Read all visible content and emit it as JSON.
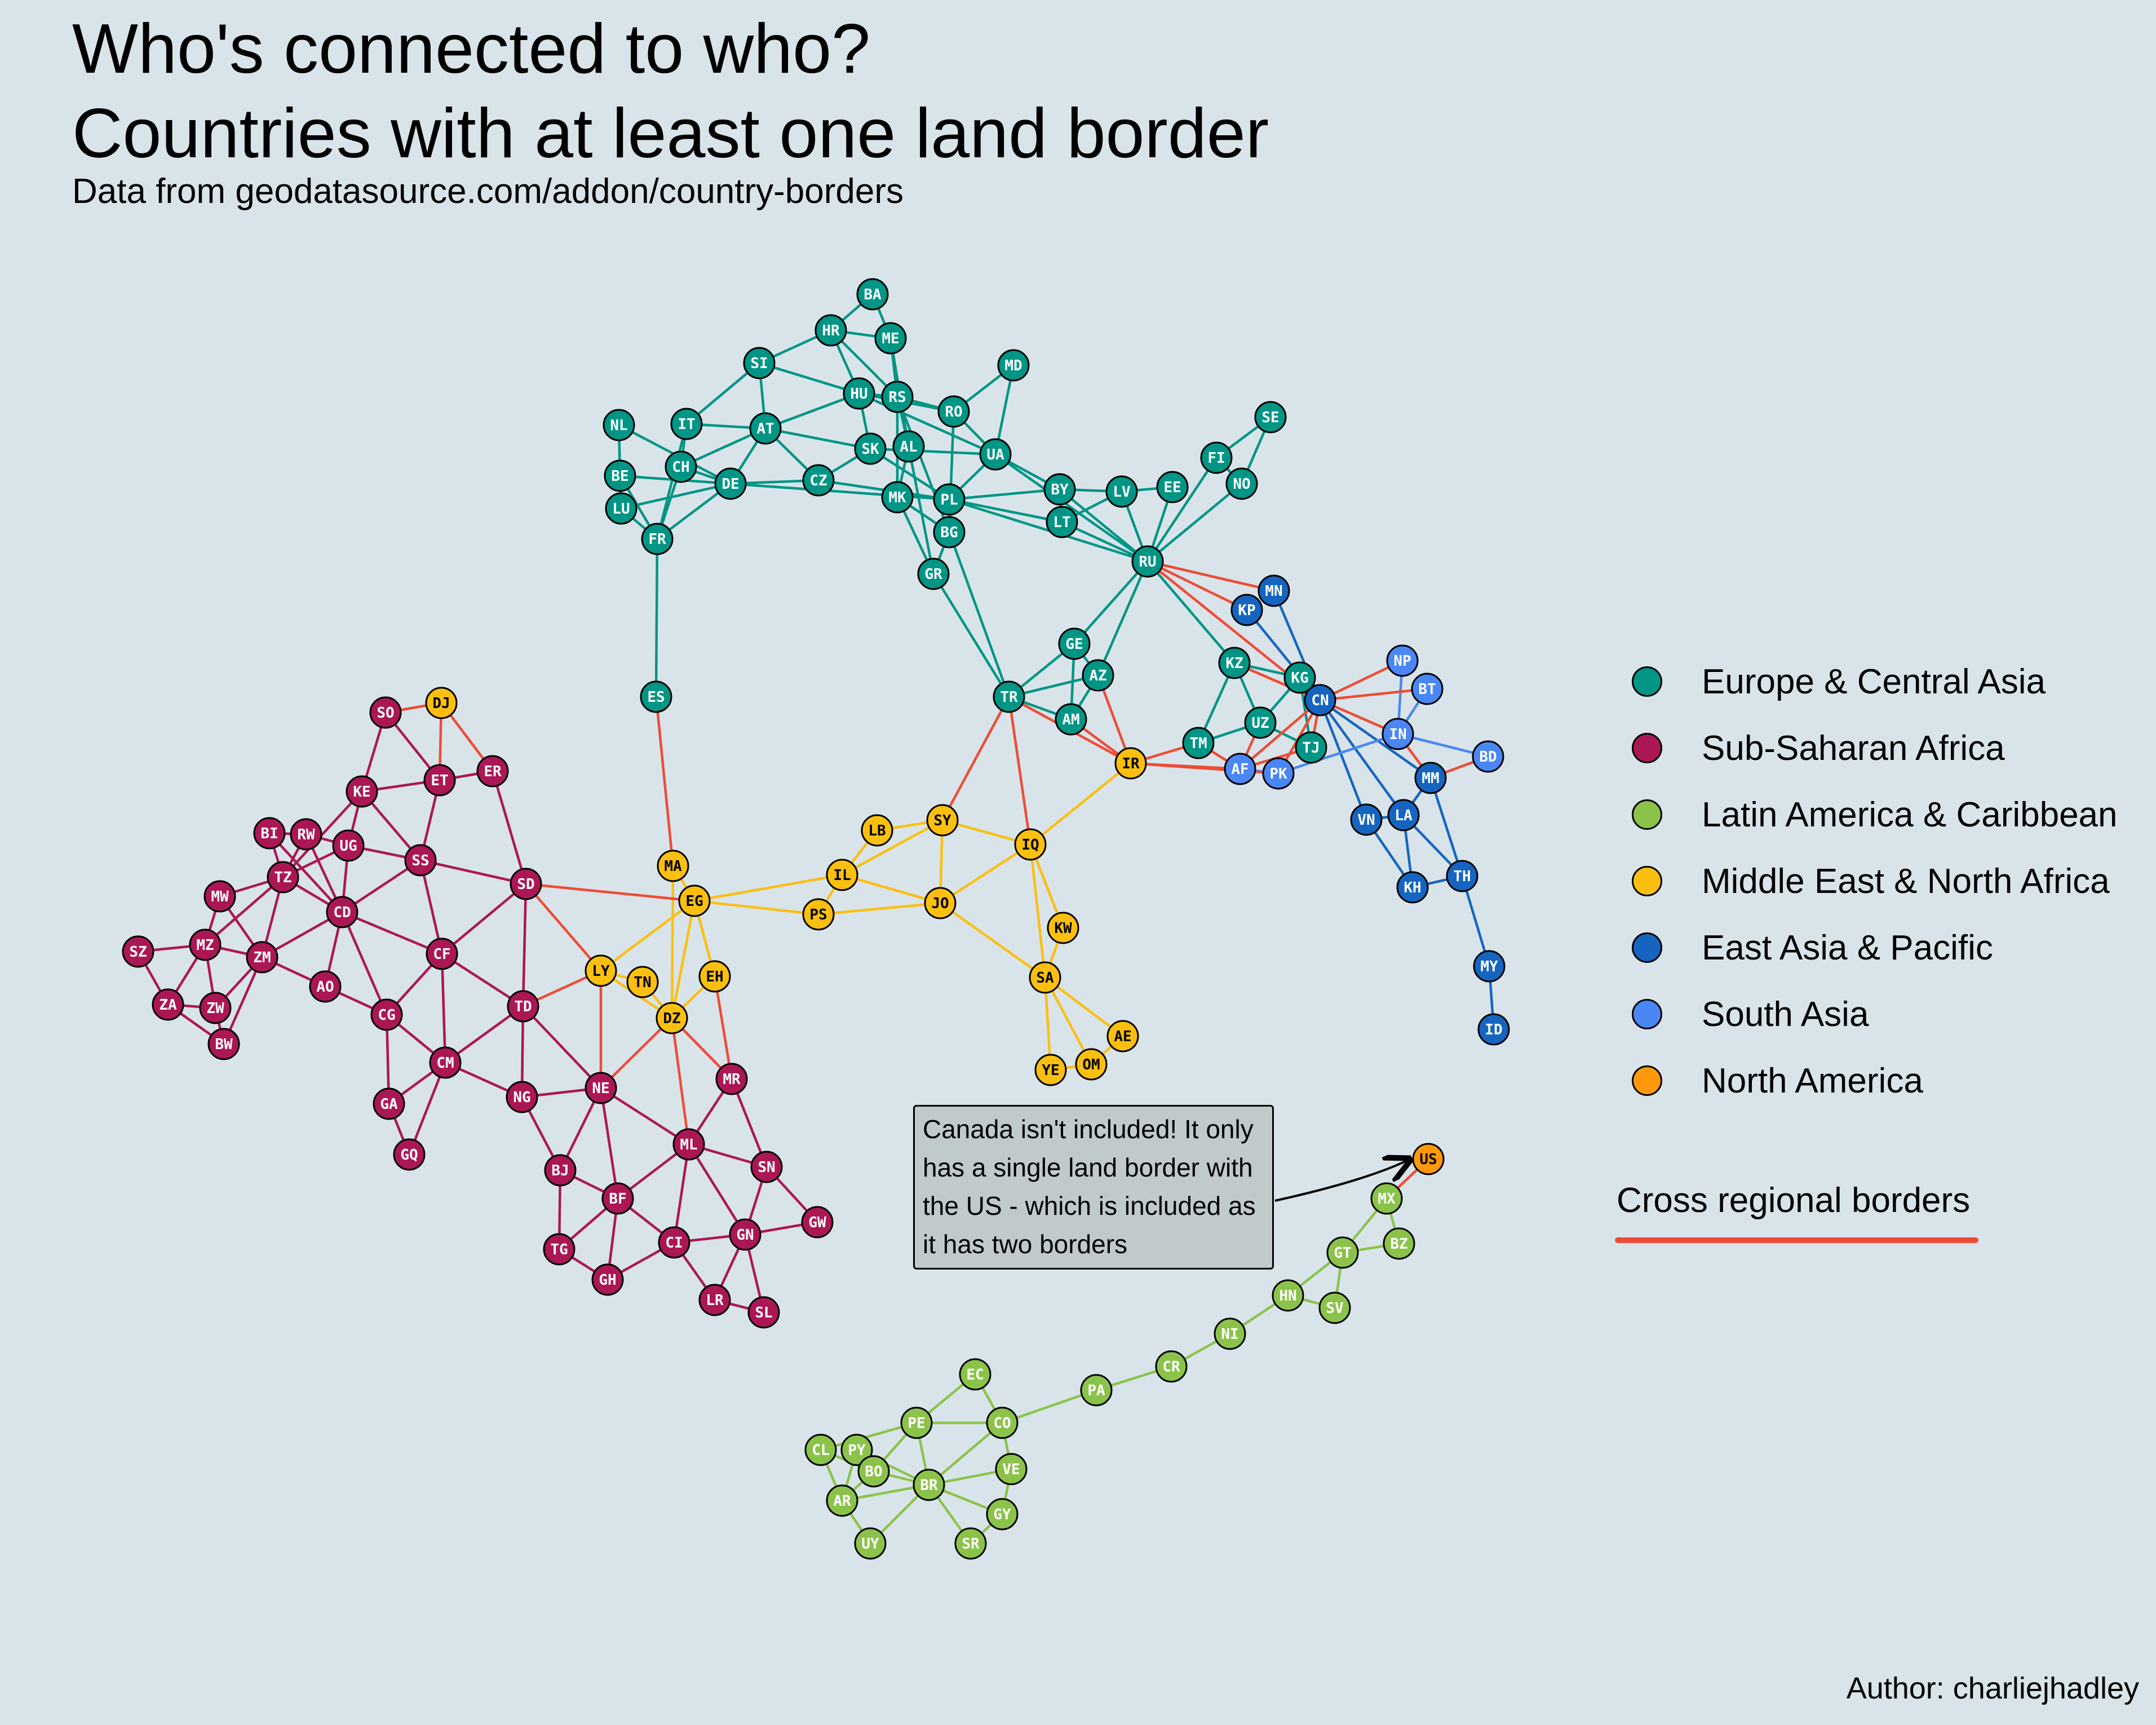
{
  "title_line1": "Who's connected to who?",
  "title_line2": "Countries with at least one land border",
  "subtitle": "Data from geodatasource.com/addon/country-borders",
  "author": "Author: charliejhadley",
  "annotation": "Canada isn't included! It only has a single land border with the US - which is included as it has two borders",
  "cross_regional": {
    "label": "Cross regional borders",
    "color": "#ee4b35"
  },
  "regions": [
    {
      "key": "eca",
      "name": "Europe & Central Asia",
      "color": "#019585",
      "text": "#ffffff"
    },
    {
      "key": "ssa",
      "name": "Sub-Saharan Africa",
      "color": "#ab1755",
      "text": "#ffffff"
    },
    {
      "key": "lac",
      "name": "Latin America & Caribbean",
      "color": "#8bc34a",
      "text": "#ffffff"
    },
    {
      "key": "mena",
      "name": "Middle East & North Africa",
      "color": "#fbbf0f",
      "text": "#000000"
    },
    {
      "key": "eap",
      "name": "East Asia & Pacific",
      "color": "#1565c0",
      "text": "#ffffff"
    },
    {
      "key": "sa",
      "name": "South Asia",
      "color": "#4a86f4",
      "text": "#ffffff"
    },
    {
      "key": "na",
      "name": "North America",
      "color": "#ff980b",
      "text": "#000000"
    }
  ],
  "nodes": [
    {
      "id": "BA",
      "r": "eca"
    },
    {
      "id": "HR",
      "r": "eca"
    },
    {
      "id": "ME",
      "r": "eca"
    },
    {
      "id": "SI",
      "r": "eca"
    },
    {
      "id": "MD",
      "r": "eca"
    },
    {
      "id": "HU",
      "r": "eca"
    },
    {
      "id": "RS",
      "r": "eca"
    },
    {
      "id": "RO",
      "r": "eca"
    },
    {
      "id": "NL",
      "r": "eca"
    },
    {
      "id": "IT",
      "r": "eca"
    },
    {
      "id": "AT",
      "r": "eca"
    },
    {
      "id": "SE",
      "r": "eca"
    },
    {
      "id": "SK",
      "r": "eca"
    },
    {
      "id": "AL",
      "r": "eca"
    },
    {
      "id": "UA",
      "r": "eca"
    },
    {
      "id": "FI",
      "r": "eca"
    },
    {
      "id": "CH",
      "r": "eca"
    },
    {
      "id": "BE",
      "r": "eca"
    },
    {
      "id": "DE",
      "r": "eca"
    },
    {
      "id": "CZ",
      "r": "eca"
    },
    {
      "id": "NO",
      "r": "eca"
    },
    {
      "id": "MK",
      "r": "eca"
    },
    {
      "id": "PL",
      "r": "eca"
    },
    {
      "id": "BY",
      "r": "eca"
    },
    {
      "id": "LV",
      "r": "eca"
    },
    {
      "id": "EE",
      "r": "eca"
    },
    {
      "id": "LU",
      "r": "eca"
    },
    {
      "id": "LT",
      "r": "eca"
    },
    {
      "id": "FR",
      "r": "eca"
    },
    {
      "id": "BG",
      "r": "eca"
    },
    {
      "id": "RU",
      "r": "eca"
    },
    {
      "id": "GR",
      "r": "eca"
    },
    {
      "id": "GE",
      "r": "eca"
    },
    {
      "id": "KZ",
      "r": "eca"
    },
    {
      "id": "AZ",
      "r": "eca"
    },
    {
      "id": "KG",
      "r": "eca"
    },
    {
      "id": "ES",
      "r": "eca"
    },
    {
      "id": "TR",
      "r": "eca"
    },
    {
      "id": "UZ",
      "r": "eca"
    },
    {
      "id": "AM",
      "r": "eca"
    },
    {
      "id": "TM",
      "r": "eca"
    },
    {
      "id": "TJ",
      "r": "eca"
    },
    {
      "id": "MN",
      "r": "eap"
    },
    {
      "id": "KP",
      "r": "eap"
    },
    {
      "id": "CN",
      "r": "eap"
    },
    {
      "id": "MM",
      "r": "eap"
    },
    {
      "id": "VN",
      "r": "eap"
    },
    {
      "id": "LA",
      "r": "eap"
    },
    {
      "id": "TH",
      "r": "eap"
    },
    {
      "id": "KH",
      "r": "eap"
    },
    {
      "id": "MY",
      "r": "eap"
    },
    {
      "id": "ID",
      "r": "eap"
    },
    {
      "id": "NP",
      "r": "sa"
    },
    {
      "id": "BT",
      "r": "sa"
    },
    {
      "id": "IN",
      "r": "sa"
    },
    {
      "id": "BD",
      "r": "sa"
    },
    {
      "id": "AF",
      "r": "sa"
    },
    {
      "id": "PK",
      "r": "sa"
    },
    {
      "id": "DJ",
      "r": "mena"
    },
    {
      "id": "IR",
      "r": "mena"
    },
    {
      "id": "SY",
      "r": "mena"
    },
    {
      "id": "LB",
      "r": "mena"
    },
    {
      "id": "IQ",
      "r": "mena"
    },
    {
      "id": "MA",
      "r": "mena"
    },
    {
      "id": "IL",
      "r": "mena"
    },
    {
      "id": "EG",
      "r": "mena"
    },
    {
      "id": "JO",
      "r": "mena"
    },
    {
      "id": "PS",
      "r": "mena"
    },
    {
      "id": "KW",
      "r": "mena"
    },
    {
      "id": "LY",
      "r": "mena"
    },
    {
      "id": "EH",
      "r": "mena"
    },
    {
      "id": "TN",
      "r": "mena"
    },
    {
      "id": "SA",
      "r": "mena"
    },
    {
      "id": "DZ",
      "r": "mena"
    },
    {
      "id": "AE",
      "r": "mena"
    },
    {
      "id": "OM",
      "r": "mena"
    },
    {
      "id": "YE",
      "r": "mena"
    },
    {
      "id": "SO",
      "r": "ssa"
    },
    {
      "id": "ER",
      "r": "ssa"
    },
    {
      "id": "ET",
      "r": "ssa"
    },
    {
      "id": "KE",
      "r": "ssa"
    },
    {
      "id": "BI",
      "r": "ssa"
    },
    {
      "id": "RW",
      "r": "ssa"
    },
    {
      "id": "UG",
      "r": "ssa"
    },
    {
      "id": "SS",
      "r": "ssa"
    },
    {
      "id": "TZ",
      "r": "ssa"
    },
    {
      "id": "SD",
      "r": "ssa"
    },
    {
      "id": "MW",
      "r": "ssa"
    },
    {
      "id": "CD",
      "r": "ssa"
    },
    {
      "id": "SZ",
      "r": "ssa"
    },
    {
      "id": "MZ",
      "r": "ssa"
    },
    {
      "id": "ZM",
      "r": "ssa"
    },
    {
      "id": "CF",
      "r": "ssa"
    },
    {
      "id": "AO",
      "r": "ssa"
    },
    {
      "id": "ZA",
      "r": "ssa"
    },
    {
      "id": "ZW",
      "r": "ssa"
    },
    {
      "id": "TD",
      "r": "ssa"
    },
    {
      "id": "CG",
      "r": "ssa"
    },
    {
      "id": "BW",
      "r": "ssa"
    },
    {
      "id": "CM",
      "r": "ssa"
    },
    {
      "id": "MR",
      "r": "ssa"
    },
    {
      "id": "NE",
      "r": "ssa"
    },
    {
      "id": "NG",
      "r": "ssa"
    },
    {
      "id": "GA",
      "r": "ssa"
    },
    {
      "id": "ML",
      "r": "ssa"
    },
    {
      "id": "GQ",
      "r": "ssa"
    },
    {
      "id": "SN",
      "r": "ssa"
    },
    {
      "id": "BJ",
      "r": "ssa"
    },
    {
      "id": "BF",
      "r": "ssa"
    },
    {
      "id": "GW",
      "r": "ssa"
    },
    {
      "id": "GN",
      "r": "ssa"
    },
    {
      "id": "CI",
      "r": "ssa"
    },
    {
      "id": "TG",
      "r": "ssa"
    },
    {
      "id": "GH",
      "r": "ssa"
    },
    {
      "id": "LR",
      "r": "ssa"
    },
    {
      "id": "SL",
      "r": "ssa"
    },
    {
      "id": "US",
      "r": "na"
    },
    {
      "id": "MX",
      "r": "lac"
    },
    {
      "id": "GT",
      "r": "lac"
    },
    {
      "id": "BZ",
      "r": "lac"
    },
    {
      "id": "HN",
      "r": "lac"
    },
    {
      "id": "SV",
      "r": "lac"
    },
    {
      "id": "NI",
      "r": "lac"
    },
    {
      "id": "CR",
      "r": "lac"
    },
    {
      "id": "PA",
      "r": "lac"
    },
    {
      "id": "EC",
      "r": "lac"
    },
    {
      "id": "PE",
      "r": "lac"
    },
    {
      "id": "CO",
      "r": "lac"
    },
    {
      "id": "CL",
      "r": "lac"
    },
    {
      "id": "PY",
      "r": "lac"
    },
    {
      "id": "BO",
      "r": "lac"
    },
    {
      "id": "VE",
      "r": "lac"
    },
    {
      "id": "BR",
      "r": "lac"
    },
    {
      "id": "AR",
      "r": "lac"
    },
    {
      "id": "GY",
      "r": "lac"
    },
    {
      "id": "UY",
      "r": "lac"
    },
    {
      "id": "SR",
      "r": "lac"
    }
  ],
  "edges": [
    [
      "BA",
      "HR"
    ],
    [
      "BA",
      "ME"
    ],
    [
      "HR",
      "ME"
    ],
    [
      "HR",
      "SI"
    ],
    [
      "HR",
      "HU"
    ],
    [
      "HR",
      "RS"
    ],
    [
      "ME",
      "RS"
    ],
    [
      "ME",
      "AL"
    ],
    [
      "SI",
      "AT"
    ],
    [
      "SI",
      "HU"
    ],
    [
      "SI",
      "IT"
    ],
    [
      "HU",
      "AT"
    ],
    [
      "HU",
      "SK"
    ],
    [
      "HU",
      "RS"
    ],
    [
      "HU",
      "RO"
    ],
    [
      "HU",
      "UA"
    ],
    [
      "RS",
      "RO"
    ],
    [
      "RS",
      "MK"
    ],
    [
      "RS",
      "BG"
    ],
    [
      "RS",
      "AL"
    ],
    [
      "RO",
      "UA"
    ],
    [
      "RO",
      "MD"
    ],
    [
      "RO",
      "BG"
    ],
    [
      "MD",
      "UA"
    ],
    [
      "NL",
      "BE"
    ],
    [
      "NL",
      "DE"
    ],
    [
      "IT",
      "CH"
    ],
    [
      "IT",
      "AT"
    ],
    [
      "IT",
      "FR"
    ],
    [
      "AT",
      "CH"
    ],
    [
      "AT",
      "DE"
    ],
    [
      "AT",
      "CZ"
    ],
    [
      "AT",
      "SK"
    ],
    [
      "SK",
      "CZ"
    ],
    [
      "SK",
      "PL"
    ],
    [
      "SK",
      "UA"
    ],
    [
      "AL",
      "MK"
    ],
    [
      "AL",
      "GR"
    ],
    [
      "UA",
      "PL"
    ],
    [
      "UA",
      "BY"
    ],
    [
      "UA",
      "RU"
    ],
    [
      "CH",
      "DE"
    ],
    [
      "CH",
      "FR"
    ],
    [
      "BE",
      "DE"
    ],
    [
      "BE",
      "FR"
    ],
    [
      "BE",
      "LU"
    ],
    [
      "DE",
      "FR"
    ],
    [
      "DE",
      "LU"
    ],
    [
      "DE",
      "CZ"
    ],
    [
      "DE",
      "PL"
    ],
    [
      "CZ",
      "PL"
    ],
    [
      "MK",
      "BG"
    ],
    [
      "MK",
      "GR"
    ],
    [
      "PL",
      "BY"
    ],
    [
      "PL",
      "LT"
    ],
    [
      "PL",
      "RU"
    ],
    [
      "BY",
      "LV"
    ],
    [
      "BY",
      "LT"
    ],
    [
      "BY",
      "RU"
    ],
    [
      "LV",
      "EE"
    ],
    [
      "LV",
      "LT"
    ],
    [
      "LV",
      "RU"
    ],
    [
      "EE",
      "RU"
    ],
    [
      "LU",
      "FR"
    ],
    [
      "LT",
      "RU"
    ],
    [
      "FI",
      "SE"
    ],
    [
      "FI",
      "NO"
    ],
    [
      "FI",
      "RU"
    ],
    [
      "SE",
      "NO"
    ],
    [
      "NO",
      "RU"
    ],
    [
      "BG",
      "GR"
    ],
    [
      "BG",
      "TR"
    ],
    [
      "GR",
      "TR"
    ],
    [
      "FR",
      "ES"
    ],
    [
      "RU",
      "GE"
    ],
    [
      "RU",
      "AZ"
    ],
    [
      "RU",
      "KZ"
    ],
    [
      "GE",
      "TR"
    ],
    [
      "GE",
      "AZ"
    ],
    [
      "GE",
      "AM"
    ],
    [
      "AZ",
      "TR"
    ],
    [
      "AZ",
      "AM"
    ],
    [
      "TR",
      "AM"
    ],
    [
      "KZ",
      "KG"
    ],
    [
      "KZ",
      "UZ"
    ],
    [
      "KZ",
      "TM"
    ],
    [
      "KG",
      "UZ"
    ],
    [
      "KG",
      "TJ"
    ],
    [
      "UZ",
      "TM"
    ],
    [
      "UZ",
      "TJ"
    ],
    [
      "KP",
      "CN"
    ],
    [
      "MN",
      "CN"
    ],
    [
      "CN",
      "VN"
    ],
    [
      "CN",
      "LA"
    ],
    [
      "CN",
      "MM"
    ],
    [
      "VN",
      "LA"
    ],
    [
      "VN",
      "KH"
    ],
    [
      "LA",
      "KH"
    ],
    [
      "LA",
      "TH"
    ],
    [
      "LA",
      "MM"
    ],
    [
      "MM",
      "TH"
    ],
    [
      "KH",
      "TH"
    ],
    [
      "TH",
      "MY"
    ],
    [
      "MY",
      "ID"
    ],
    [
      "NP",
      "IN"
    ],
    [
      "BT",
      "IN"
    ],
    [
      "IN",
      "PK"
    ],
    [
      "IN",
      "BD"
    ],
    [
      "AF",
      "PK"
    ],
    [
      "SY",
      "LB"
    ],
    [
      "SY",
      "IL"
    ],
    [
      "SY",
      "JO"
    ],
    [
      "SY",
      "IQ"
    ],
    [
      "LB",
      "IL"
    ],
    [
      "IL",
      "EG"
    ],
    [
      "IL",
      "JO"
    ],
    [
      "IL",
      "PS"
    ],
    [
      "PS",
      "EG"
    ],
    [
      "PS",
      "JO"
    ],
    [
      "JO",
      "IQ"
    ],
    [
      "JO",
      "SA"
    ],
    [
      "IQ",
      "IR"
    ],
    [
      "IQ",
      "KW"
    ],
    [
      "IQ",
      "SA"
    ],
    [
      "KW",
      "SA"
    ],
    [
      "SA",
      "YE"
    ],
    [
      "SA",
      "OM"
    ],
    [
      "SA",
      "AE"
    ],
    [
      "YE",
      "OM"
    ],
    [
      "OM",
      "AE"
    ],
    [
      "EG",
      "LY"
    ],
    [
      "EG",
      "MA"
    ],
    [
      "EG",
      "DZ"
    ],
    [
      "EG",
      "EH"
    ],
    [
      "LY",
      "TN"
    ],
    [
      "LY",
      "DZ"
    ],
    [
      "TN",
      "DZ"
    ],
    [
      "MA",
      "DZ"
    ],
    [
      "DZ",
      "EH"
    ],
    [
      "SO",
      "KE"
    ],
    [
      "SO",
      "ET"
    ],
    [
      "ET",
      "KE"
    ],
    [
      "ET",
      "ER"
    ],
    [
      "ET",
      "SS"
    ],
    [
      "ER",
      "SD"
    ],
    [
      "KE",
      "UG"
    ],
    [
      "KE",
      "SS"
    ],
    [
      "KE",
      "TZ"
    ],
    [
      "BI",
      "RW"
    ],
    [
      "BI",
      "TZ"
    ],
    [
      "BI",
      "CD"
    ],
    [
      "RW",
      "UG"
    ],
    [
      "RW",
      "TZ"
    ],
    [
      "RW",
      "CD"
    ],
    [
      "UG",
      "SS"
    ],
    [
      "UG",
      "TZ"
    ],
    [
      "UG",
      "CD"
    ],
    [
      "SS",
      "SD"
    ],
    [
      "SS",
      "CD"
    ],
    [
      "SS",
      "CF"
    ],
    [
      "TZ",
      "MW"
    ],
    [
      "TZ",
      "MZ"
    ],
    [
      "TZ",
      "ZM"
    ],
    [
      "TZ",
      "CD"
    ],
    [
      "MW",
      "MZ"
    ],
    [
      "MW",
      "ZM"
    ],
    [
      "SD",
      "CF"
    ],
    [
      "SD",
      "TD"
    ],
    [
      "CD",
      "ZM"
    ],
    [
      "CD",
      "AO"
    ],
    [
      "CD",
      "CG"
    ],
    [
      "CD",
      "CF"
    ],
    [
      "SZ",
      "MZ"
    ],
    [
      "SZ",
      "ZA"
    ],
    [
      "MZ",
      "ZM"
    ],
    [
      "MZ",
      "ZW"
    ],
    [
      "MZ",
      "ZA"
    ],
    [
      "ZM",
      "ZW"
    ],
    [
      "ZM",
      "AO"
    ],
    [
      "ZM",
      "BW"
    ],
    [
      "ZA",
      "ZW"
    ],
    [
      "ZA",
      "BW"
    ],
    [
      "ZW",
      "BW"
    ],
    [
      "CF",
      "TD"
    ],
    [
      "CF",
      "CM"
    ],
    [
      "CF",
      "CG"
    ],
    [
      "AO",
      "CG"
    ],
    [
      "CG",
      "CM"
    ],
    [
      "CG",
      "GA"
    ],
    [
      "TD",
      "CM"
    ],
    [
      "TD",
      "NE"
    ],
    [
      "TD",
      "NG"
    ],
    [
      "CM",
      "NG"
    ],
    [
      "CM",
      "GA"
    ],
    [
      "CM",
      "GQ"
    ],
    [
      "GA",
      "GQ"
    ],
    [
      "NG",
      "NE"
    ],
    [
      "NG",
      "BJ"
    ],
    [
      "NE",
      "BJ"
    ],
    [
      "NE",
      "BF"
    ],
    [
      "NE",
      "ML"
    ],
    [
      "MR",
      "ML"
    ],
    [
      "MR",
      "SN"
    ],
    [
      "ML",
      "SN"
    ],
    [
      "ML",
      "BF"
    ],
    [
      "ML",
      "GN"
    ],
    [
      "ML",
      "CI"
    ],
    [
      "SN",
      "GN"
    ],
    [
      "SN",
      "GW"
    ],
    [
      "BJ",
      "BF"
    ],
    [
      "BJ",
      "TG"
    ],
    [
      "BF",
      "TG"
    ],
    [
      "BF",
      "GH"
    ],
    [
      "BF",
      "CI"
    ],
    [
      "GN",
      "GW"
    ],
    [
      "GN",
      "CI"
    ],
    [
      "GN",
      "LR"
    ],
    [
      "GN",
      "SL"
    ],
    [
      "CI",
      "LR"
    ],
    [
      "CI",
      "GH"
    ],
    [
      "TG",
      "GH"
    ],
    [
      "LR",
      "SL"
    ],
    [
      "MX",
      "GT"
    ],
    [
      "MX",
      "BZ"
    ],
    [
      "GT",
      "BZ"
    ],
    [
      "GT",
      "HN"
    ],
    [
      "GT",
      "SV"
    ],
    [
      "HN",
      "SV"
    ],
    [
      "HN",
      "NI"
    ],
    [
      "NI",
      "CR"
    ],
    [
      "CR",
      "PA"
    ],
    [
      "PA",
      "CO"
    ],
    [
      "EC",
      "PE"
    ],
    [
      "EC",
      "CO"
    ],
    [
      "PE",
      "CO"
    ],
    [
      "PE",
      "BR"
    ],
    [
      "PE",
      "BO"
    ],
    [
      "PE",
      "CL"
    ],
    [
      "CO",
      "VE"
    ],
    [
      "CO",
      "BR"
    ],
    [
      "CL",
      "BO"
    ],
    [
      "CL",
      "AR"
    ],
    [
      "PY",
      "BO"
    ],
    [
      "PY",
      "BR"
    ],
    [
      "PY",
      "AR"
    ],
    [
      "BO",
      "BR"
    ],
    [
      "BO",
      "AR"
    ],
    [
      "VE",
      "BR"
    ],
    [
      "VE",
      "GY"
    ],
    [
      "BR",
      "AR"
    ],
    [
      "BR",
      "GY"
    ],
    [
      "BR",
      "UY"
    ],
    [
      "BR",
      "SR"
    ],
    [
      "AR",
      "UY"
    ],
    [
      "GY",
      "SR"
    ],
    [
      "RU",
      "KP"
    ],
    [
      "RU",
      "MN"
    ],
    [
      "RU",
      "CN"
    ],
    [
      "KZ",
      "CN"
    ],
    [
      "KG",
      "CN"
    ],
    [
      "TJ",
      "CN"
    ],
    [
      "TJ",
      "AF"
    ],
    [
      "UZ",
      "AF"
    ],
    [
      "TM",
      "AF"
    ],
    [
      "TM",
      "IR"
    ],
    [
      "TR",
      "IR"
    ],
    [
      "TR",
      "SY"
    ],
    [
      "TR",
      "IQ"
    ],
    [
      "AZ",
      "IR"
    ],
    [
      "AM",
      "IR"
    ],
    [
      "ES",
      "MA"
    ],
    [
      "IR",
      "AF"
    ],
    [
      "IR",
      "PK"
    ],
    [
      "CN",
      "AF"
    ],
    [
      "CN",
      "PK"
    ],
    [
      "CN",
      "IN"
    ],
    [
      "CN",
      "NP"
    ],
    [
      "CN",
      "BT"
    ],
    [
      "MM",
      "IN"
    ],
    [
      "MM",
      "BD"
    ],
    [
      "SD",
      "EG"
    ],
    [
      "SD",
      "LY"
    ],
    [
      "TD",
      "LY"
    ],
    [
      "NE",
      "LY"
    ],
    [
      "NE",
      "DZ"
    ],
    [
      "ML",
      "DZ"
    ],
    [
      "MR",
      "DZ"
    ],
    [
      "MR",
      "EH"
    ],
    [
      "ER",
      "DJ"
    ],
    [
      "ET",
      "DJ"
    ],
    [
      "SO",
      "DJ"
    ],
    [
      "US",
      "MX"
    ]
  ]
}
